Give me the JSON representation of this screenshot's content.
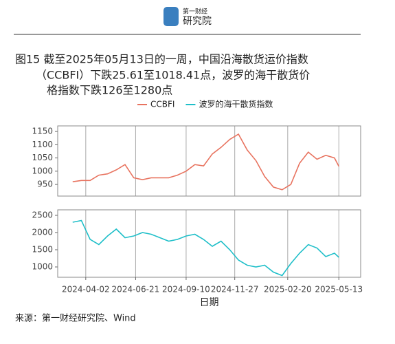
{
  "logo": {
    "small": "第一财经",
    "big": "研究院"
  },
  "title_lines": [
    "图15  截至2025年05月13日的一周，中国沿海散货运价指数",
    "（CCBFI）下跌25.61至1018.41点，波罗的海干散货价",
    "格指数下跌126至1280点"
  ],
  "source": "来源：第一财经研究院、Wind",
  "chart_data": [
    {
      "type": "line",
      "x": [
        "2024-03-12",
        "2024-03-26",
        "2024-04-09",
        "2024-04-23",
        "2024-05-07",
        "2024-05-21",
        "2024-06-04",
        "2024-06-18",
        "2024-07-02",
        "2024-07-16",
        "2024-07-30",
        "2024-08-13",
        "2024-08-27",
        "2024-09-10",
        "2024-09-24",
        "2024-10-08",
        "2024-10-22",
        "2024-11-05",
        "2024-11-19",
        "2024-12-03",
        "2024-12-17",
        "2024-12-31",
        "2025-01-14",
        "2025-01-28",
        "2025-02-11",
        "2025-02-25",
        "2025-03-11",
        "2025-03-25",
        "2025-04-08",
        "2025-04-22",
        "2025-05-06",
        "2025-05-13"
      ],
      "xlim": [
        "2024-02-17",
        "2025-06-17"
      ],
      "series": [
        {
          "name": "CCBFI",
          "color": "#e8735f",
          "values": [
            960,
            965,
            965,
            985,
            990,
            1005,
            1025,
            975,
            968,
            975,
            975,
            975,
            985,
            1000,
            1025,
            1020,
            1065,
            1090,
            1120,
            1140,
            1080,
            1040,
            980,
            940,
            930,
            950,
            1030,
            1072,
            1045,
            1060,
            1050,
            1018.41
          ]
        }
      ],
      "ylim": [
        906,
        1171
      ],
      "yticks": [
        950,
        1000,
        1050,
        1100,
        1150
      ]
    },
    {
      "type": "line",
      "x": [
        "2024-03-12",
        "2024-03-26",
        "2024-04-09",
        "2024-04-23",
        "2024-05-07",
        "2024-05-21",
        "2024-06-04",
        "2024-06-18",
        "2024-07-02",
        "2024-07-16",
        "2024-07-30",
        "2024-08-13",
        "2024-08-27",
        "2024-09-10",
        "2024-09-24",
        "2024-10-08",
        "2024-10-22",
        "2024-11-05",
        "2024-11-19",
        "2024-12-03",
        "2024-12-17",
        "2024-12-31",
        "2025-01-14",
        "2025-01-28",
        "2025-02-11",
        "2025-02-25",
        "2025-03-11",
        "2025-03-25",
        "2025-04-08",
        "2025-04-22",
        "2025-05-06",
        "2025-05-13"
      ],
      "xlim": [
        "2024-02-17",
        "2025-06-17"
      ],
      "xticks": [
        "2024-04-02",
        "2024-06-21",
        "2024-09-10",
        "2024-11-27",
        "2025-02-20",
        "2025-05-13"
      ],
      "xlabel": "日期",
      "series": [
        {
          "name": "波罗的海干散货指数",
          "color": "#1fbfc9",
          "values": [
            2300,
            2350,
            1800,
            1650,
            1900,
            2100,
            1850,
            1900,
            2000,
            1950,
            1850,
            1750,
            1800,
            1900,
            1950,
            1800,
            1600,
            1750,
            1500,
            1200,
            1050,
            1000,
            1050,
            850,
            750,
            1100,
            1400,
            1650,
            1550,
            1300,
            1400,
            1280
          ]
        }
      ],
      "ylim": [
        700,
        2660
      ],
      "yticks": [
        1000,
        1500,
        2000,
        2500
      ]
    }
  ]
}
